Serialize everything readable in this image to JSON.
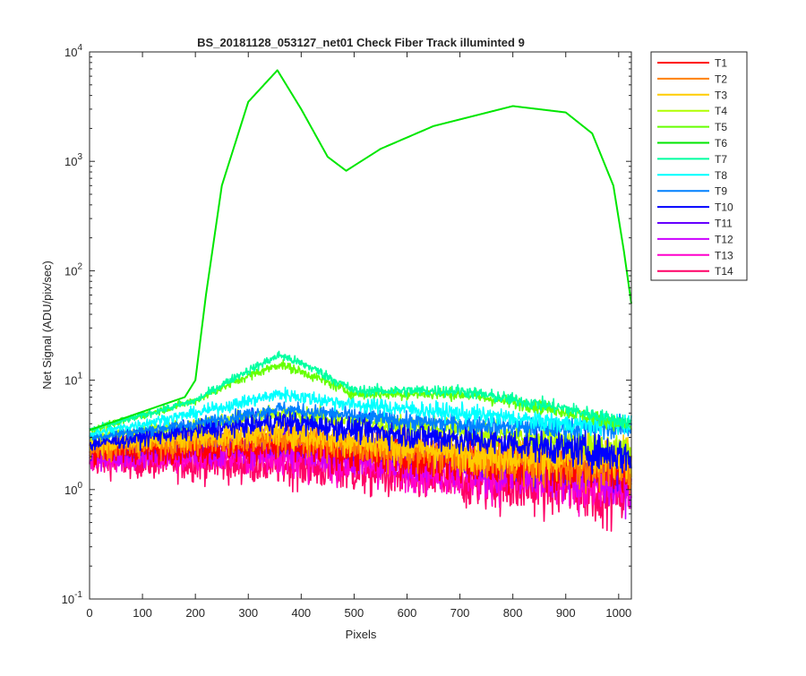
{
  "chart_data": {
    "type": "line",
    "title": "BS_20181128_053127_net01   Check Fiber     Track illuminted 9",
    "xlabel": "Pixels",
    "ylabel": "Net Signal (ADU/pix/sec)",
    "xlim": [
      0,
      1024
    ],
    "ylim": [
      0.1,
      10000
    ],
    "yscale": "log",
    "grid": false,
    "legend_position": "outside-right",
    "x_ticks": [
      0,
      100,
      200,
      300,
      400,
      500,
      600,
      700,
      800,
      900,
      1000
    ],
    "y_ticks": [
      {
        "value": 0.1,
        "base": "10",
        "exp": "-1"
      },
      {
        "value": 1,
        "base": "10",
        "exp": "0"
      },
      {
        "value": 10,
        "base": "10",
        "exp": "1"
      },
      {
        "value": 100,
        "base": "10",
        "exp": "2"
      },
      {
        "value": 1000,
        "base": "10",
        "exp": "3"
      },
      {
        "value": 10000,
        "base": "10",
        "exp": "4"
      }
    ],
    "series": [
      {
        "name": "T1",
        "color": "#ff0000",
        "profile": [
          [
            0,
            2.2
          ],
          [
            350,
            2.5
          ],
          [
            700,
            1.8
          ],
          [
            1024,
            1.5
          ]
        ],
        "noise": 0.07
      },
      {
        "name": "T2",
        "color": "#ff8000",
        "profile": [
          [
            0,
            2.4
          ],
          [
            350,
            3.0
          ],
          [
            700,
            2.0
          ],
          [
            1024,
            1.6
          ]
        ],
        "noise": 0.07
      },
      {
        "name": "T3",
        "color": "#ffcc00",
        "profile": [
          [
            0,
            2.6
          ],
          [
            350,
            3.4
          ],
          [
            700,
            2.2
          ],
          [
            1024,
            1.9
          ]
        ],
        "noise": 0.06
      },
      {
        "name": "T4",
        "color": "#b0ff00",
        "profile": [
          [
            0,
            3.0
          ],
          [
            200,
            3.8
          ],
          [
            350,
            5.0
          ],
          [
            600,
            3.8
          ],
          [
            900,
            2.8
          ],
          [
            1024,
            2.2
          ]
        ],
        "noise": 0.04
      },
      {
        "name": "T5",
        "color": "#66ff00",
        "profile": [
          [
            0,
            3.5
          ],
          [
            200,
            6.5
          ],
          [
            280,
            10
          ],
          [
            360,
            14
          ],
          [
            420,
            11
          ],
          [
            500,
            7.5
          ],
          [
            700,
            7.5
          ],
          [
            900,
            5.2
          ],
          [
            1024,
            3.8
          ]
        ],
        "noise": 0.02
      },
      {
        "name": "T6",
        "color": "#00e600",
        "profile": [
          [
            0,
            3.5
          ],
          [
            180,
            7
          ],
          [
            200,
            10
          ],
          [
            220,
            60
          ],
          [
            250,
            600
          ],
          [
            300,
            3500
          ],
          [
            355,
            6800
          ],
          [
            400,
            3000
          ],
          [
            450,
            1100
          ],
          [
            485,
            820
          ],
          [
            550,
            1300
          ],
          [
            650,
            2100
          ],
          [
            800,
            3200
          ],
          [
            900,
            2800
          ],
          [
            950,
            1800
          ],
          [
            990,
            600
          ],
          [
            1010,
            150
          ],
          [
            1024,
            50
          ]
        ],
        "noise": 0
      },
      {
        "name": "T7",
        "color": "#00ffa0",
        "profile": [
          [
            0,
            3.5
          ],
          [
            200,
            6.5
          ],
          [
            280,
            11
          ],
          [
            360,
            17
          ],
          [
            420,
            13
          ],
          [
            500,
            8.0
          ],
          [
            700,
            8.0
          ],
          [
            900,
            5.5
          ],
          [
            1024,
            4.0
          ]
        ],
        "noise": 0.02
      },
      {
        "name": "T8",
        "color": "#00ffff",
        "profile": [
          [
            0,
            3.2
          ],
          [
            200,
            5.0
          ],
          [
            360,
            7.5
          ],
          [
            500,
            6.0
          ],
          [
            700,
            5.0
          ],
          [
            900,
            4.0
          ],
          [
            1024,
            4.0
          ]
        ],
        "noise": 0.03
      },
      {
        "name": "T9",
        "color": "#0080ff",
        "profile": [
          [
            0,
            3.0
          ],
          [
            200,
            4.0
          ],
          [
            360,
            5.5
          ],
          [
            600,
            4.2
          ],
          [
            900,
            3.6
          ],
          [
            1024,
            3.8
          ]
        ],
        "noise": 0.03
      },
      {
        "name": "T10",
        "color": "#0000ff",
        "profile": [
          [
            0,
            2.6
          ],
          [
            200,
            3.5
          ],
          [
            360,
            4.2
          ],
          [
            600,
            3.2
          ],
          [
            900,
            2.4
          ],
          [
            1024,
            2.0
          ]
        ],
        "noise": 0.05
      },
      {
        "name": "T11",
        "color": "#6600ff",
        "profile": [
          [
            0,
            2.3
          ],
          [
            360,
            2.9
          ],
          [
            700,
            2.0
          ],
          [
            1024,
            1.5
          ]
        ],
        "noise": 0.06
      },
      {
        "name": "T12",
        "color": "#cc00ff",
        "profile": [
          [
            0,
            2.0
          ],
          [
            360,
            2.3
          ],
          [
            700,
            1.6
          ],
          [
            1024,
            1.2
          ]
        ],
        "noise": 0.07
      },
      {
        "name": "T13",
        "color": "#ff00cc",
        "profile": [
          [
            0,
            1.9
          ],
          [
            360,
            2.0
          ],
          [
            700,
            1.4
          ],
          [
            1024,
            1.1
          ]
        ],
        "noise": 0.08
      },
      {
        "name": "T14",
        "color": "#ff0066",
        "profile": [
          [
            0,
            1.8
          ],
          [
            360,
            1.7
          ],
          [
            700,
            1.2
          ],
          [
            1024,
            0.95
          ]
        ],
        "noise": 0.09
      }
    ]
  }
}
